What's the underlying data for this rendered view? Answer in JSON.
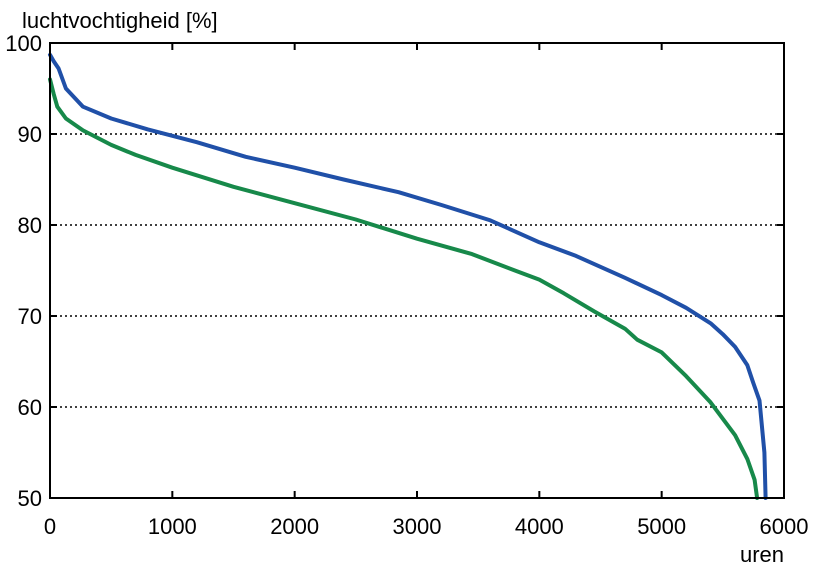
{
  "chart_data": {
    "type": "line",
    "title": "",
    "ylabel": "luchtvochtigheid [%]",
    "xlabel": "uren",
    "xlim": [
      0,
      6000
    ],
    "ylim": [
      50,
      100
    ],
    "xticks": [
      0,
      1000,
      2000,
      3000,
      4000,
      5000,
      6000
    ],
    "yticks": [
      50,
      60,
      70,
      80,
      90,
      100
    ],
    "xtick_labels": [
      "0",
      "1000",
      "2000",
      "3000",
      "4000",
      "5000",
      "6000"
    ],
    "ytick_labels": [
      "50",
      "60",
      "70",
      "80",
      "90",
      "100"
    ],
    "grid": "horizontal dotted",
    "legend": "none",
    "series": [
      {
        "color": "#2050a8",
        "x": [
          0,
          30,
          70,
          130,
          270,
          500,
          800,
          1200,
          1600,
          2000,
          2400,
          2850,
          3200,
          3600,
          4000,
          4300,
          4700,
          5000,
          5200,
          5400,
          5500,
          5600,
          5700,
          5750,
          5800,
          5840,
          5850
        ],
        "y": [
          98.7,
          98,
          97.2,
          95,
          93,
          91.7,
          90.5,
          89.1,
          87.5,
          86.3,
          85,
          83.6,
          82.2,
          80.5,
          78.1,
          76.6,
          74.2,
          72.3,
          70.9,
          69.2,
          68,
          66.6,
          64.6,
          62.6,
          60.7,
          55,
          50
        ]
      },
      {
        "color": "#17894a",
        "x": [
          0,
          30,
          60,
          130,
          270,
          500,
          700,
          1000,
          1500,
          2000,
          2500,
          3000,
          3450,
          3800,
          4000,
          4200,
          4450,
          4700,
          4800,
          5000,
          5200,
          5400,
          5600,
          5700,
          5760,
          5780
        ],
        "y": [
          96,
          94.4,
          93,
          91.7,
          90.4,
          88.8,
          87.7,
          86.3,
          84.2,
          82.4,
          80.6,
          78.5,
          76.8,
          75,
          74,
          72.5,
          70.5,
          68.6,
          67.4,
          66,
          63.4,
          60.5,
          56.9,
          54.3,
          52,
          50
        ]
      }
    ]
  }
}
